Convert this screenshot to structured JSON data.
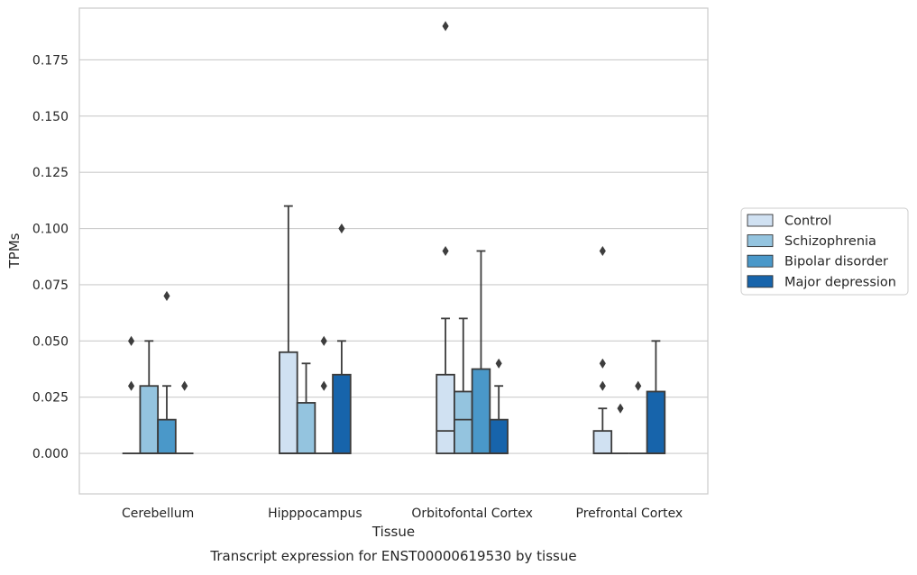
{
  "chart_data": {
    "type": "box",
    "title": "",
    "caption": "Transcript expression for ENST00000619530 by tissue",
    "xlabel": "Tissue",
    "ylabel": "TPMs",
    "ylim": [
      -0.018,
      0.198
    ],
    "y_ticks": [
      0.0,
      0.025,
      0.05,
      0.075,
      0.1,
      0.125,
      0.15,
      0.175
    ],
    "y_tick_labels": [
      "0.000",
      "0.025",
      "0.050",
      "0.075",
      "0.100",
      "0.125",
      "0.150",
      "0.175"
    ],
    "grid": "horizontal",
    "legend_position": "center-right",
    "categories": [
      "Cerebellum",
      "Hipppocampus",
      "Orbitofontal Cortex",
      "Prefrontal Cortex"
    ],
    "series": [
      {
        "name": "Control",
        "color": "#d0e1f2",
        "boxes": [
          {
            "q1": 0.0,
            "median": 0.0,
            "q3": 0.0,
            "whisker_low": 0.0,
            "whisker_high": 0.0,
            "outliers": [
              0.03,
              0.05
            ]
          },
          {
            "q1": 0.0,
            "median": 0.0,
            "q3": 0.045,
            "whisker_low": 0.0,
            "whisker_high": 0.11,
            "outliers": []
          },
          {
            "q1": 0.0,
            "median": 0.01,
            "q3": 0.035,
            "whisker_low": 0.0,
            "whisker_high": 0.06,
            "outliers": [
              0.09,
              0.19
            ]
          },
          {
            "q1": 0.0,
            "median": 0.0,
            "q3": 0.01,
            "whisker_low": 0.0,
            "whisker_high": 0.02,
            "outliers": [
              0.03,
              0.04,
              0.09
            ]
          }
        ]
      },
      {
        "name": "Schizophrenia",
        "color": "#94c4df",
        "boxes": [
          {
            "q1": 0.0,
            "median": 0.0,
            "q3": 0.03,
            "whisker_low": 0.0,
            "whisker_high": 0.05,
            "outliers": []
          },
          {
            "q1": 0.0,
            "median": 0.0,
            "q3": 0.0225,
            "whisker_low": 0.0,
            "whisker_high": 0.04,
            "outliers": []
          },
          {
            "q1": 0.0,
            "median": 0.015,
            "q3": 0.0275,
            "whisker_low": 0.0,
            "whisker_high": 0.06,
            "outliers": []
          },
          {
            "q1": 0.0,
            "median": 0.0,
            "q3": 0.0,
            "whisker_low": 0.0,
            "whisker_high": 0.0,
            "outliers": [
              0.02
            ]
          }
        ]
      },
      {
        "name": "Bipolar disorder",
        "color": "#4a98c9",
        "boxes": [
          {
            "q1": 0.0,
            "median": 0.0,
            "q3": 0.015,
            "whisker_low": 0.0,
            "whisker_high": 0.03,
            "outliers": [
              0.07
            ]
          },
          {
            "q1": 0.0,
            "median": 0.0,
            "q3": 0.0,
            "whisker_low": 0.0,
            "whisker_high": 0.0,
            "outliers": [
              0.03,
              0.05
            ]
          },
          {
            "q1": 0.0,
            "median": 0.0,
            "q3": 0.0375,
            "whisker_low": 0.0,
            "whisker_high": 0.09,
            "outliers": []
          },
          {
            "q1": 0.0,
            "median": 0.0,
            "q3": 0.0,
            "whisker_low": 0.0,
            "whisker_high": 0.0,
            "outliers": [
              0.03
            ]
          }
        ]
      },
      {
        "name": "Major depression",
        "color": "#1764ab",
        "boxes": [
          {
            "q1": 0.0,
            "median": 0.0,
            "q3": 0.0,
            "whisker_low": 0.0,
            "whisker_high": 0.0,
            "outliers": [
              0.03
            ]
          },
          {
            "q1": 0.0,
            "median": 0.0,
            "q3": 0.035,
            "whisker_low": 0.0,
            "whisker_high": 0.05,
            "outliers": [
              0.1
            ]
          },
          {
            "q1": 0.0,
            "median": 0.0,
            "q3": 0.015,
            "whisker_low": 0.0,
            "whisker_high": 0.03,
            "outliers": [
              0.04
            ]
          },
          {
            "q1": 0.0,
            "median": 0.0,
            "q3": 0.0275,
            "whisker_low": 0.0,
            "whisker_high": 0.05,
            "outliers": []
          }
        ]
      }
    ]
  }
}
